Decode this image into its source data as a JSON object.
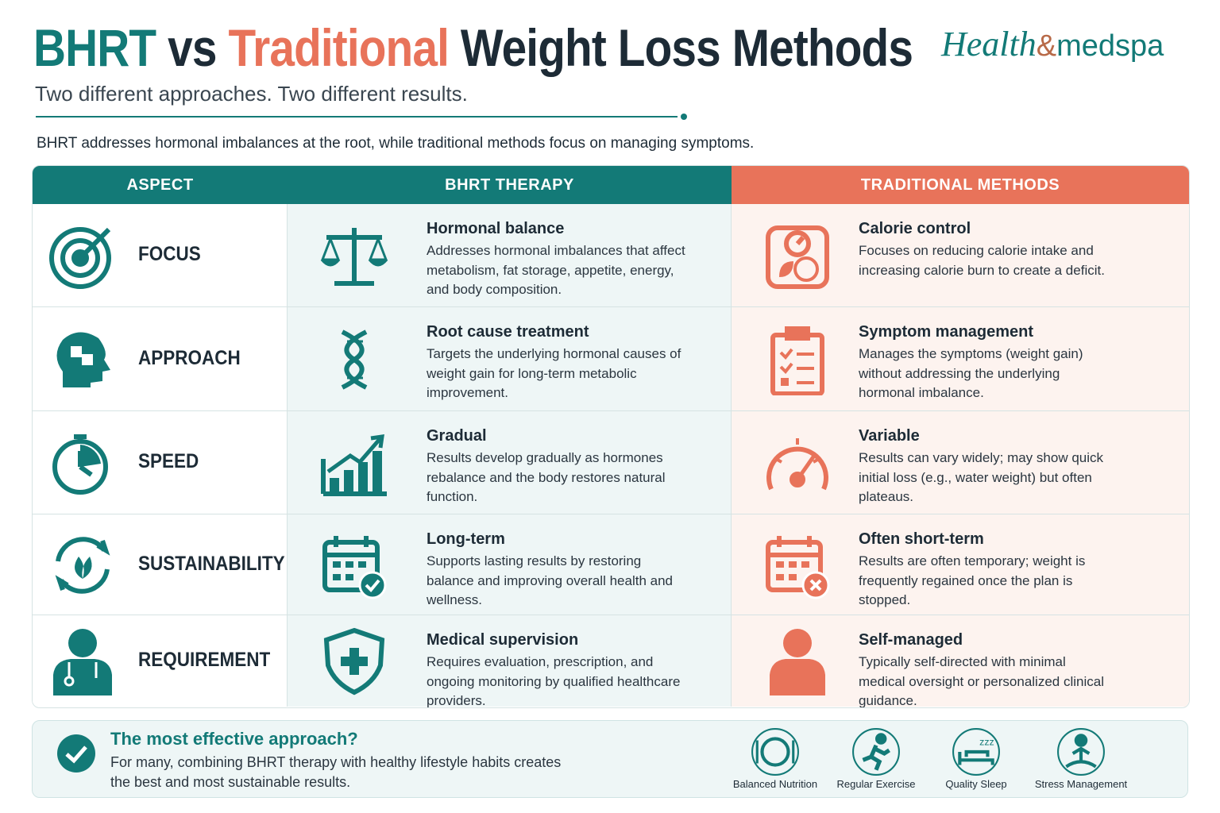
{
  "header": {
    "title": [
      "BHRT",
      "vs",
      "Traditional",
      "Weight Loss Methods"
    ],
    "subtitle": "Two different approaches. Two different results.",
    "intro": "BHRT addresses hormonal imbalances at the root, while traditional methods focus on managing symptoms.",
    "logo": [
      "Health",
      "&",
      "medspa"
    ]
  },
  "table": {
    "columns": [
      "ASPECT",
      "BHRT THERAPY",
      "TRADITIONAL METHODS"
    ],
    "rows": [
      {
        "aspect": "FOCUS",
        "bhrt": {
          "title": "Hormonal balance",
          "text": "Addresses hormonal imbalances that affect metabolism, fat storage, appetite, energy, and body composition."
        },
        "traditional": {
          "title": "Calorie control",
          "text": "Focuses on reducing calorie intake and increasing calorie burn to create a deficit."
        }
      },
      {
        "aspect": "APPROACH",
        "bhrt": {
          "title": "Root cause treatment",
          "text": "Targets the underlying hormonal causes of weight gain for long-term metabolic improvement."
        },
        "traditional": {
          "title": "Symptom management",
          "text": "Manages the symptoms (weight gain) without addressing the underlying hormonal imbalance."
        }
      },
      {
        "aspect": "SPEED",
        "bhrt": {
          "title": "Gradual",
          "text": "Results develop gradually as hormones rebalance and the body restores natural function."
        },
        "traditional": {
          "title": "Variable",
          "text": "Results can vary widely; may show quick initial loss (e.g., water weight) but often plateaus."
        }
      },
      {
        "aspect": "SUSTAINABILITY",
        "bhrt": {
          "title": "Long-term",
          "text": "Supports lasting results by restoring balance and improving overall health and wellness."
        },
        "traditional": {
          "title": "Often short-term",
          "text": "Results are often temporary; weight is frequently regained once the plan is stopped."
        }
      },
      {
        "aspect": "REQUIREMENT",
        "bhrt": {
          "title": "Medical supervision",
          "text": "Requires evaluation, prescription, and ongoing monitoring by qualified healthcare providers."
        },
        "traditional": {
          "title": "Self-managed",
          "text": "Typically self-directed with minimal medical oversight or personalized clinical guidance."
        }
      }
    ]
  },
  "footer": {
    "title": "The most effective approach?",
    "text": "For many, combining BHRT therapy with healthy lifestyle habits creates the best and most sustainable results.",
    "habits": [
      "Balanced Nutrition",
      "Regular Exercise",
      "Quality Sleep",
      "Stress Management"
    ]
  }
}
